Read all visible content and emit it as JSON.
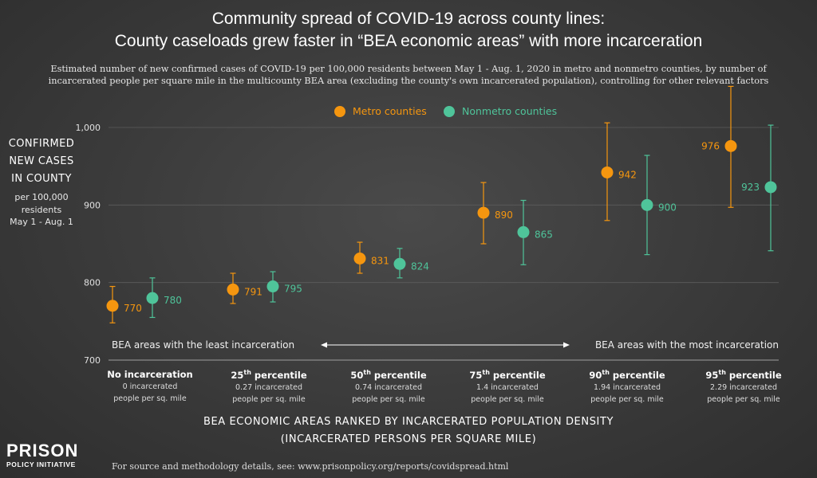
{
  "title_line1": "Community spread of COVID-19 across county lines:",
  "title_line2": "County caseloads grew faster in “BEA economic areas” with more incarceration",
  "subtitle_line1": "Estimated number of new confirmed cases of COVID-19 per 100,000 residents between May 1 - Aug. 1, 2020 in metro and nonmetro counties, by number of",
  "subtitle_line2": "incarcerated people per square mile in the multicounty BEA area (excluding the county's own incarcerated population), controlling for other relevant factors",
  "ylabel": {
    "line1": "CONFIRMED",
    "line2": "NEW CASES",
    "line3": "IN COUNTY",
    "sub1": "per 100,000",
    "sub2": "residents",
    "sub3": "May 1 - Aug. 1"
  },
  "xlabel_line1": "BEA ECONOMIC AREAS RANKED BY INCARCERATED POPULATION DENSITY",
  "xlabel_line2": "(INCARCERATED PERSONS PER SQUARE MILE)",
  "arrow_left_text": "BEA areas with the least incarceration",
  "arrow_right_text": "BEA areas with the most incarceration",
  "colors": {
    "metro": "#f5960f",
    "nonmetro": "#4fc49a",
    "grid": "#5c5c5c"
  },
  "logo": {
    "line1": "PRISON",
    "line2": "POLICY INITIATIVE"
  },
  "footer": "For source and methodology details, see: www.prisonpolicy.org/reports/covidspread.html",
  "chart_data": {
    "type": "scatter",
    "title": "Community spread of COVID-19 across county lines",
    "ylim": [
      700,
      1000
    ],
    "yticks": [
      "700",
      "800",
      "900",
      "1,000"
    ],
    "grid": true,
    "legend_placement": "top-center",
    "categories": [
      {
        "title": "No incarceration",
        "desc1": "0 incarcerated",
        "desc2": "people per sq. mile"
      },
      {
        "title_main": "25",
        "title_sup": "th",
        "title_rest": " percentile",
        "desc1": "0.27 incarcerated",
        "desc2": "people per sq. mile"
      },
      {
        "title_main": "50",
        "title_sup": "th",
        "title_rest": " percentile",
        "desc1": "0.74 incarcerated",
        "desc2": "people per sq. mile"
      },
      {
        "title_main": "75",
        "title_sup": "th",
        "title_rest": " percentile",
        "desc1": "1.4 incarcerated",
        "desc2": "people per sq. mile"
      },
      {
        "title_main": "90",
        "title_sup": "th",
        "title_rest": " percentile",
        "desc1": "1.94 incarcerated",
        "desc2": "people per sq. mile"
      },
      {
        "title_main": "95",
        "title_sup": "th",
        "title_rest": " percentile",
        "desc1": "2.29 incarcerated",
        "desc2": "people per sq. mile"
      }
    ],
    "series": [
      {
        "name": "Metro counties",
        "values": [
          770,
          791,
          831,
          890,
          942,
          976
        ],
        "ci_low": [
          748,
          773,
          812,
          850,
          880,
          897
        ],
        "ci_high": [
          795,
          812,
          852,
          929,
          1006,
          1053
        ]
      },
      {
        "name": "Nonmetro counties",
        "values": [
          780,
          795,
          824,
          865,
          900,
          923
        ],
        "ci_low": [
          755,
          775,
          806,
          823,
          836,
          841
        ],
        "ci_high": [
          806,
          814,
          844,
          906,
          964,
          1003
        ]
      }
    ]
  }
}
